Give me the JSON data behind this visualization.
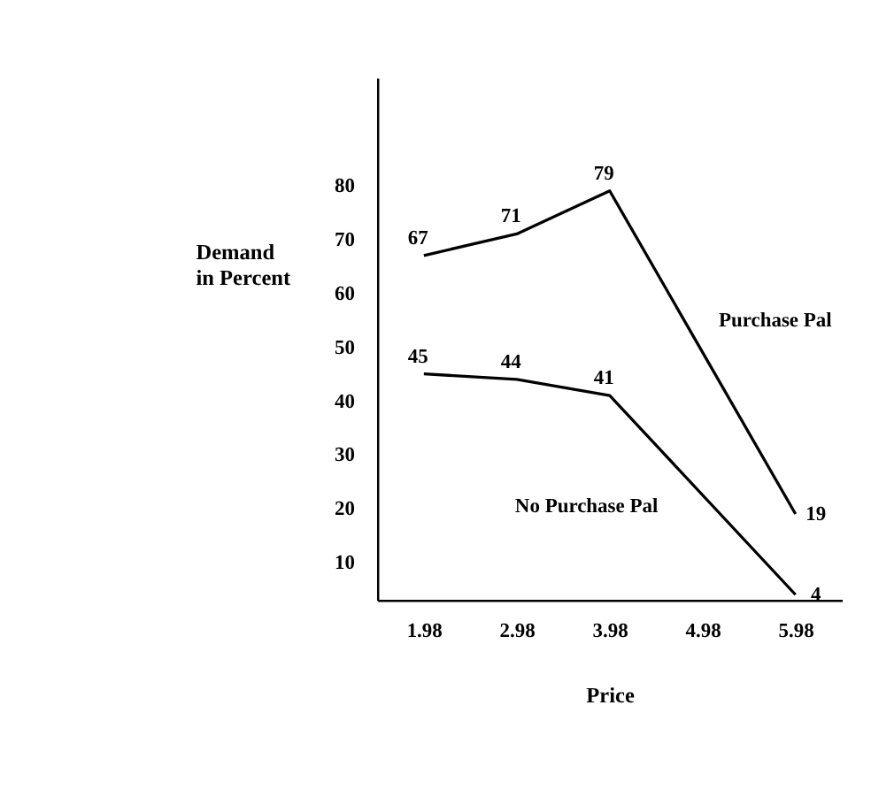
{
  "chart_data": {
    "type": "line",
    "xlabel": "Price",
    "ylabel": "Demand in Percent",
    "categories": [
      "1.98",
      "2.98",
      "3.98",
      "4.98",
      "5.98"
    ],
    "series": [
      {
        "name": "Purchase Pal",
        "color": "#000000",
        "values": [
          67,
          71,
          79,
          null,
          19
        ]
      },
      {
        "name": "No Purchase Pal",
        "color": "#000000",
        "values": [
          45,
          44,
          41,
          null,
          4
        ]
      }
    ],
    "ylim": [
      3,
      100
    ],
    "yticks": [
      10,
      20,
      30,
      40,
      50,
      60,
      70,
      80
    ],
    "data_labels": true,
    "grid": false,
    "legend": false,
    "marker": "none",
    "line_style": "solid"
  }
}
